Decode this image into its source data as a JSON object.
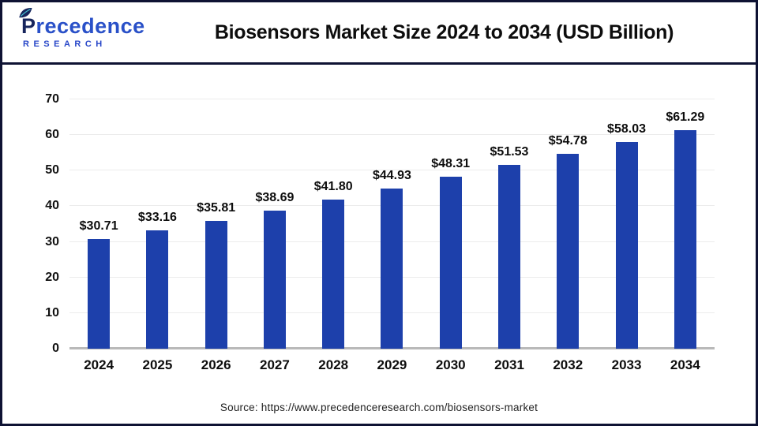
{
  "header": {
    "logo": {
      "name": "Precedence",
      "sub": "RESEARCH"
    },
    "title": "Biosensors Market Size 2024 to 2034 (USD Billion)"
  },
  "chart_data": {
    "type": "bar",
    "title": "Biosensors Market Size 2024 to 2034 (USD Billion)",
    "categories": [
      "2024",
      "2025",
      "2026",
      "2027",
      "2028",
      "2029",
      "2030",
      "2031",
      "2032",
      "2033",
      "2034"
    ],
    "values": [
      30.71,
      33.16,
      35.81,
      38.69,
      41.8,
      44.93,
      48.31,
      51.53,
      54.78,
      58.03,
      61.29
    ],
    "value_labels": [
      "$30.71",
      "$33.16",
      "$35.81",
      "$38.69",
      "$41.80",
      "$44.93",
      "$48.31",
      "$51.53",
      "$54.78",
      "$58.03",
      "$61.29"
    ],
    "xlabel": "",
    "ylabel": "",
    "ylim": [
      0,
      70
    ],
    "yticks": [
      0,
      10,
      20,
      30,
      40,
      50,
      60,
      70
    ],
    "grid": true,
    "legend_position": "none",
    "bar_color": "#1d40ab"
  },
  "footer": {
    "source": "Source: https://www.precedenceresearch.com/biosensors-market"
  }
}
